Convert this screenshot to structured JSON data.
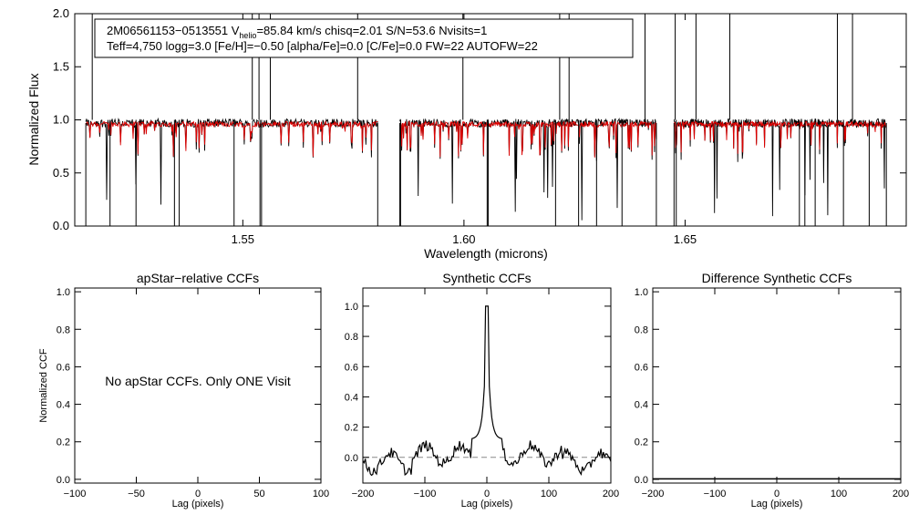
{
  "chart_data": [
    {
      "type": "line",
      "xlabel": "Wavelength (microns)",
      "ylabel": "Normalized Flux",
      "xlim": [
        1.512,
        1.7
      ],
      "ylim": [
        0.0,
        2.0
      ],
      "xticks": [
        1.55,
        1.6,
        1.65
      ],
      "xtick_labels": [
        "1.55",
        "1.60",
        "1.65"
      ],
      "yticks": [
        0.0,
        0.5,
        1.0,
        1.5,
        2.0
      ],
      "ytick_labels": [
        "0.0",
        "0.5",
        "1.0",
        "1.5",
        "2.0"
      ],
      "chip_ranges": [
        [
          1.5145,
          1.5805
        ],
        [
          1.5855,
          1.6435
        ],
        [
          1.6475,
          1.6955
        ]
      ],
      "series": [
        {
          "color": "#000000",
          "continuum": 0.97
        },
        {
          "color": "#dd0000",
          "continuum": 0.96
        }
      ],
      "annotation": {
        "line1_a": "2M06561153−0513551  V",
        "line1_sub": "helio",
        "line1_b": "=85.84 km/s  chisq=2.01  S/N=53.6  Nvisits=1",
        "line2": "Teff=4,750 logg=3.0 [Fe/H]=−0.50 [alpha/Fe]=0.0 [C/Fe]=0.0 FW=22 AUTOFW=22"
      }
    },
    {
      "type": "line",
      "title": "apStar−relative CCFs",
      "xlabel": "Lag (pixels)",
      "ylabel": "Normalized CCF",
      "xlim": [
        -100,
        100
      ],
      "ylim": [
        -0.02,
        1.02
      ],
      "xtick_labels": [
        "−100",
        "−50",
        "0",
        "50",
        "100"
      ],
      "xticks": [
        -100,
        -50,
        0,
        50,
        100
      ],
      "ytick_labels": [
        "0.0",
        "0.2",
        "0.4",
        "0.6",
        "0.8",
        "1.0"
      ],
      "yticks": [
        0.0,
        0.2,
        0.4,
        0.6,
        0.8,
        1.0
      ],
      "message": "No apStar CCFs.  Only ONE Visit"
    },
    {
      "type": "line",
      "title": "Synthetic CCFs",
      "xlabel": "Lag (pixels)",
      "xlim": [
        -200,
        200
      ],
      "ylim": [
        -0.17,
        1.12
      ],
      "xtick_labels": [
        "−200",
        "−100",
        "0",
        "100",
        "200"
      ],
      "xticks": [
        -200,
        -100,
        0,
        100,
        200
      ],
      "ytick_labels": [
        "0.0",
        "0.2",
        "0.4",
        "0.6",
        "0.8",
        "1.0"
      ],
      "yticks": [
        0.0,
        0.2,
        0.4,
        0.6,
        0.8,
        1.0
      ],
      "dashed_zero": true,
      "peak": {
        "x": 0,
        "y": 1.0
      }
    },
    {
      "type": "line",
      "title": "Difference Synthetic CCFs",
      "xlabel": "Lag (pixels)",
      "xlim": [
        -200,
        200
      ],
      "ylim": [
        -0.02,
        1.02
      ],
      "xtick_labels": [
        "−200",
        "−100",
        "0",
        "100",
        "200"
      ],
      "xticks": [
        -200,
        -100,
        0,
        100,
        200
      ],
      "ytick_labels": [
        "0.0",
        "0.2",
        "0.4",
        "0.6",
        "0.8",
        "1.0"
      ],
      "yticks": [
        0.0,
        0.2,
        0.4,
        0.6,
        0.8,
        1.0
      ],
      "flat_value": 0.0
    }
  ]
}
